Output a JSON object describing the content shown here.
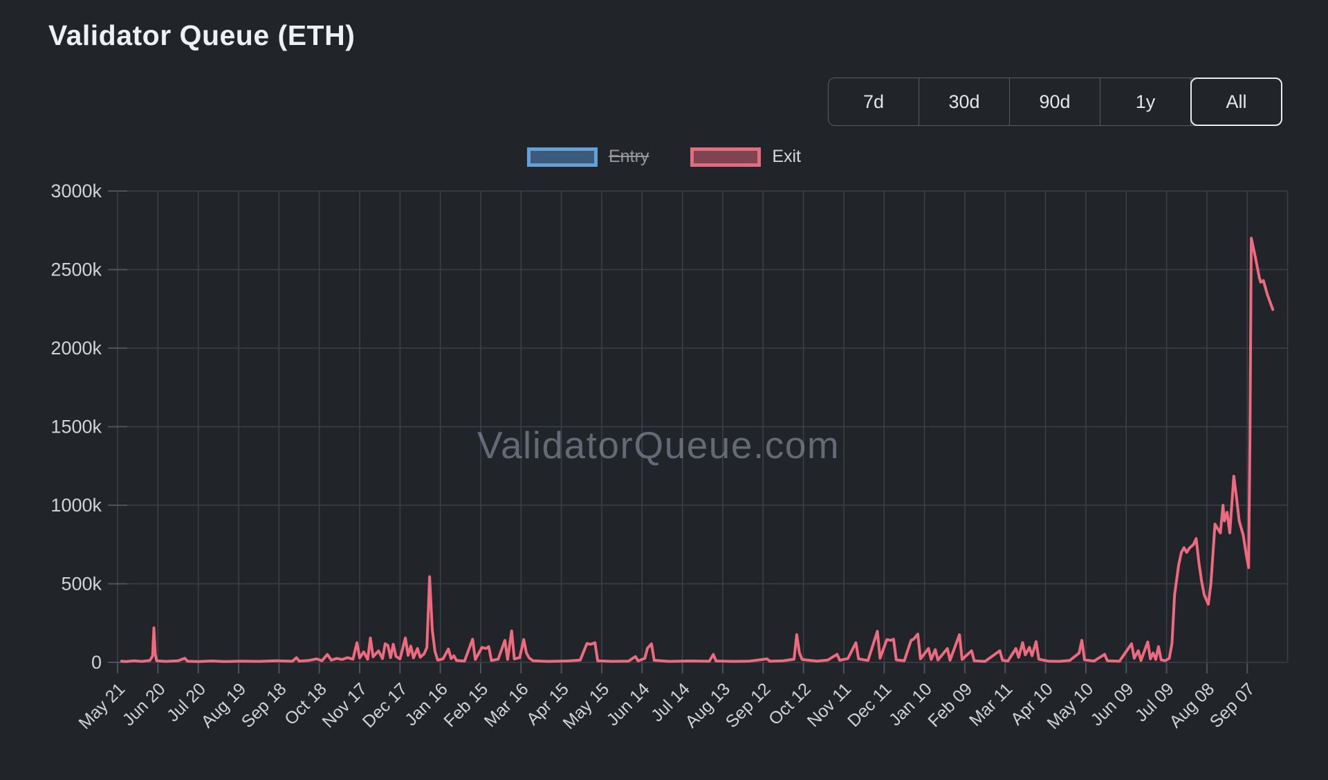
{
  "page": {
    "title": "Validator Queue (ETH)"
  },
  "range_buttons": {
    "options": [
      "7d",
      "30d",
      "90d",
      "1y",
      "All"
    ],
    "active": "All"
  },
  "legend": {
    "items": [
      {
        "id": "entry",
        "label": "Entry",
        "swatch_border": "#62a2da",
        "swatch_fill": "#3d5a7b",
        "hidden": true
      },
      {
        "id": "exit",
        "label": "Exit",
        "swatch_border": "#e56b7e",
        "swatch_fill": "#7e4450",
        "hidden": false
      }
    ]
  },
  "watermark": "ValidatorQueue.com",
  "colors": {
    "background": "#212529",
    "gridline": "#3a4048",
    "tick": "#4d535b",
    "axis_text": "#cfd4da",
    "title_text": "#eef1f4",
    "exit_line": "#ee6a7e",
    "entry_line": "#62a2da",
    "watermark": "#a8aec4"
  },
  "chart_data": {
    "type": "line",
    "title": "Validator Queue (ETH)",
    "x_axis": {
      "start_date": "2023-05-21",
      "unit": "days_since_start",
      "tick_interval_days": 30,
      "tick_labels": [
        "May 21",
        "Jun 20",
        "Jul 20",
        "Aug 19",
        "Sep 18",
        "Oct 18",
        "Nov 17",
        "Dec 17",
        "Jan 16",
        "Feb 15",
        "Mar 16",
        "Apr 15",
        "May 15",
        "Jun 14",
        "Jul 14",
        "Aug 13",
        "Sep 12",
        "Oct 12",
        "Nov 11",
        "Dec 11",
        "Jan 10",
        "Feb 09",
        "Mar 11",
        "Apr 10",
        "May 10",
        "Jun 09",
        "Jul 09",
        "Aug 08",
        "Sep 07"
      ]
    },
    "y_axis": {
      "tick_labels": [
        "0",
        "500k",
        "1000k",
        "1500k",
        "2000k",
        "2500k",
        "3000k"
      ],
      "min": 0,
      "max": 3000,
      "values_unit": "thousand ETH (k)"
    },
    "grid": true,
    "legend_position": "top",
    "series": [
      {
        "name": "Entry",
        "hidden": true,
        "points": []
      },
      {
        "name": "Exit",
        "hidden": false,
        "points": [
          [
            3,
            8
          ],
          [
            6,
            5
          ],
          [
            12,
            10
          ],
          [
            18,
            6
          ],
          [
            24,
            12
          ],
          [
            26,
            40
          ],
          [
            27,
            220
          ],
          [
            28,
            55
          ],
          [
            29,
            10
          ],
          [
            36,
            6
          ],
          [
            45,
            10
          ],
          [
            50,
            26
          ],
          [
            52,
            7
          ],
          [
            60,
            5
          ],
          [
            70,
            9
          ],
          [
            80,
            5
          ],
          [
            92,
            8
          ],
          [
            105,
            6
          ],
          [
            118,
            10
          ],
          [
            130,
            7
          ],
          [
            133,
            30
          ],
          [
            135,
            8
          ],
          [
            142,
            12
          ],
          [
            148,
            22
          ],
          [
            152,
            10
          ],
          [
            156,
            50
          ],
          [
            159,
            14
          ],
          [
            163,
            25
          ],
          [
            167,
            18
          ],
          [
            171,
            30
          ],
          [
            175,
            20
          ],
          [
            178,
            125
          ],
          [
            180,
            28
          ],
          [
            183,
            66
          ],
          [
            186,
            20
          ],
          [
            188,
            155
          ],
          [
            190,
            35
          ],
          [
            194,
            73
          ],
          [
            197,
            24
          ],
          [
            199,
            118
          ],
          [
            201,
            108
          ],
          [
            203,
            30
          ],
          [
            205,
            115
          ],
          [
            207,
            38
          ],
          [
            210,
            22
          ],
          [
            214,
            155
          ],
          [
            216,
            45
          ],
          [
            218,
            103
          ],
          [
            220,
            28
          ],
          [
            223,
            88
          ],
          [
            225,
            32
          ],
          [
            228,
            55
          ],
          [
            230,
            95
          ],
          [
            232,
            545
          ],
          [
            234,
            205
          ],
          [
            236,
            70
          ],
          [
            238,
            14
          ],
          [
            242,
            22
          ],
          [
            246,
            85
          ],
          [
            248,
            24
          ],
          [
            250,
            42
          ],
          [
            252,
            12
          ],
          [
            258,
            8
          ],
          [
            264,
            147
          ],
          [
            266,
            18
          ],
          [
            271,
            95
          ],
          [
            274,
            88
          ],
          [
            276,
            100
          ],
          [
            278,
            12
          ],
          [
            283,
            20
          ],
          [
            288,
            140
          ],
          [
            290,
            18
          ],
          [
            293,
            200
          ],
          [
            295,
            22
          ],
          [
            299,
            30
          ],
          [
            302,
            145
          ],
          [
            304,
            60
          ],
          [
            306,
            28
          ],
          [
            309,
            10
          ],
          [
            320,
            6
          ],
          [
            335,
            9
          ],
          [
            344,
            14
          ],
          [
            349,
            120
          ],
          [
            352,
            115
          ],
          [
            355,
            125
          ],
          [
            357,
            10
          ],
          [
            368,
            6
          ],
          [
            380,
            8
          ],
          [
            385,
            37
          ],
          [
            387,
            9
          ],
          [
            392,
            25
          ],
          [
            394,
            90
          ],
          [
            397,
            118
          ],
          [
            399,
            13
          ],
          [
            410,
            6
          ],
          [
            425,
            9
          ],
          [
            440,
            7
          ],
          [
            443,
            50
          ],
          [
            445,
            9
          ],
          [
            458,
            6
          ],
          [
            470,
            8
          ],
          [
            483,
            22
          ],
          [
            485,
            7
          ],
          [
            495,
            10
          ],
          [
            503,
            20
          ],
          [
            505,
            176
          ],
          [
            507,
            60
          ],
          [
            509,
            18
          ],
          [
            520,
            8
          ],
          [
            528,
            14
          ],
          [
            535,
            51
          ],
          [
            537,
            13
          ],
          [
            543,
            24
          ],
          [
            549,
            125
          ],
          [
            551,
            22
          ],
          [
            558,
            12
          ],
          [
            565,
            198
          ],
          [
            567,
            26
          ],
          [
            572,
            145
          ],
          [
            575,
            140
          ],
          [
            577,
            147
          ],
          [
            579,
            16
          ],
          [
            585,
            10
          ],
          [
            590,
            140
          ],
          [
            592,
            148
          ],
          [
            595,
            180
          ],
          [
            597,
            22
          ],
          [
            603,
            88
          ],
          [
            605,
            18
          ],
          [
            608,
            81
          ],
          [
            610,
            15
          ],
          [
            617,
            88
          ],
          [
            619,
            13
          ],
          [
            626,
            176
          ],
          [
            628,
            18
          ],
          [
            635,
            74
          ],
          [
            637,
            10
          ],
          [
            645,
            6
          ],
          [
            656,
            74
          ],
          [
            658,
            13
          ],
          [
            662,
            8
          ],
          [
            668,
            88
          ],
          [
            670,
            32
          ],
          [
            673,
            125
          ],
          [
            675,
            48
          ],
          [
            678,
            95
          ],
          [
            680,
            42
          ],
          [
            683,
            132
          ],
          [
            685,
            20
          ],
          [
            692,
            8
          ],
          [
            700,
            6
          ],
          [
            708,
            12
          ],
          [
            715,
            59
          ],
          [
            717,
            140
          ],
          [
            719,
            16
          ],
          [
            726,
            8
          ],
          [
            734,
            51
          ],
          [
            736,
            10
          ],
          [
            745,
            7
          ],
          [
            754,
            118
          ],
          [
            756,
            26
          ],
          [
            759,
            74
          ],
          [
            761,
            12
          ],
          [
            766,
            130
          ],
          [
            768,
            22
          ],
          [
            770,
            60
          ],
          [
            772,
            18
          ],
          [
            774,
            100
          ],
          [
            776,
            16
          ],
          [
            779,
            10
          ],
          [
            782,
            25
          ],
          [
            784,
            120
          ],
          [
            786,
            430
          ],
          [
            789,
            620
          ],
          [
            791,
            700
          ],
          [
            793,
            730
          ],
          [
            795,
            700
          ],
          [
            797,
            727
          ],
          [
            800,
            750
          ],
          [
            802,
            788
          ],
          [
            804,
            640
          ],
          [
            806,
            520
          ],
          [
            808,
            430
          ],
          [
            811,
            370
          ],
          [
            813,
            500
          ],
          [
            816,
            880
          ],
          [
            818,
            850
          ],
          [
            820,
            824
          ],
          [
            822,
            1000
          ],
          [
            823,
            900
          ],
          [
            825,
            955
          ],
          [
            827,
            824
          ],
          [
            830,
            1185
          ],
          [
            832,
            1050
          ],
          [
            834,
            900
          ],
          [
            837,
            810
          ],
          [
            839,
            700
          ],
          [
            841,
            603
          ],
          [
            842,
            1400
          ],
          [
            843,
            2700
          ],
          [
            846,
            2580
          ],
          [
            849,
            2450
          ],
          [
            850,
            2420
          ],
          [
            852,
            2430
          ],
          [
            855,
            2340
          ],
          [
            859,
            2246
          ]
        ]
      }
    ]
  }
}
